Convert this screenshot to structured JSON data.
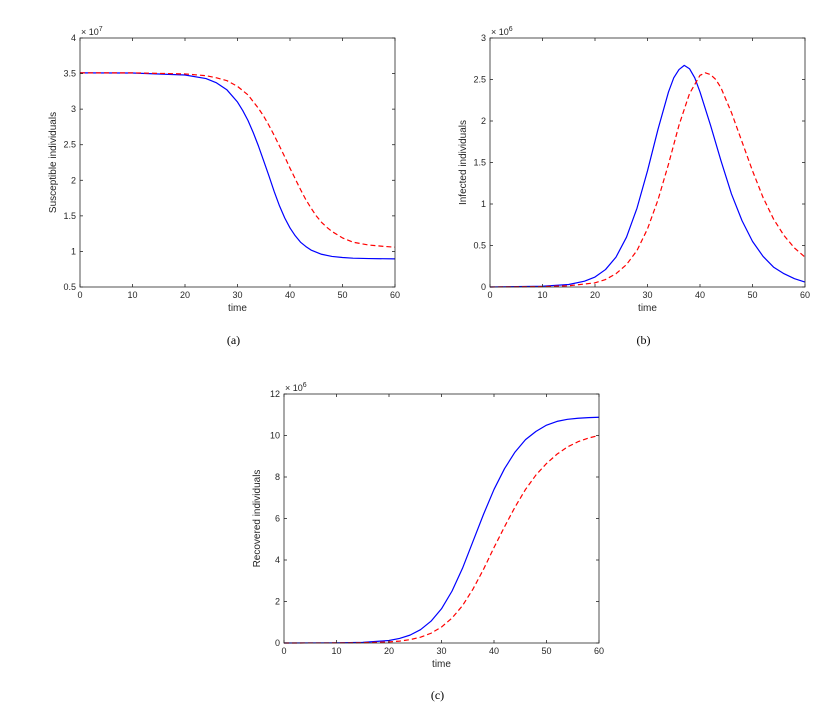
{
  "chart_data": [
    {
      "type": "line",
      "caption": "(a)",
      "xlabel": "time",
      "ylabel": "Susceptible individuals",
      "exponent": "7",
      "xlim": [
        0,
        60
      ],
      "ylim": [
        0.5,
        4
      ],
      "xticks": [
        0,
        10,
        20,
        30,
        40,
        50,
        60
      ],
      "yticks": [
        0.5,
        1,
        1.5,
        2,
        2.5,
        3,
        3.5,
        4
      ],
      "ytick_labels": [
        "0.5",
        "1",
        "1.5",
        "2",
        "2.5",
        "3",
        "3.5",
        "4"
      ],
      "series": [
        {
          "style": "solid",
          "color": "#0000ff",
          "x": [
            0,
            10,
            20,
            24,
            26,
            28,
            30,
            31,
            32,
            33,
            34,
            35,
            36,
            37,
            38,
            39,
            40,
            41,
            42,
            43,
            44,
            45,
            46,
            48,
            50,
            52,
            55,
            60
          ],
          "y": [
            3.51,
            3.508,
            3.48,
            3.43,
            3.37,
            3.27,
            3.1,
            2.98,
            2.84,
            2.67,
            2.48,
            2.27,
            2.06,
            1.84,
            1.64,
            1.47,
            1.33,
            1.22,
            1.13,
            1.07,
            1.02,
            0.99,
            0.96,
            0.93,
            0.915,
            0.905,
            0.9,
            0.895
          ]
        },
        {
          "style": "dashed",
          "color": "#ff0000",
          "x": [
            0,
            10,
            20,
            24,
            26,
            28,
            30,
            32,
            34,
            35,
            36,
            37,
            38,
            39,
            40,
            41,
            42,
            43,
            44,
            45,
            46,
            47,
            48,
            50,
            52,
            55,
            58,
            60
          ],
          "y": [
            3.51,
            3.51,
            3.495,
            3.47,
            3.44,
            3.4,
            3.32,
            3.2,
            3.01,
            2.9,
            2.77,
            2.63,
            2.48,
            2.33,
            2.17,
            2.02,
            1.87,
            1.73,
            1.61,
            1.5,
            1.41,
            1.34,
            1.28,
            1.19,
            1.13,
            1.09,
            1.07,
            1.06
          ]
        }
      ]
    },
    {
      "type": "line",
      "caption": "(b)",
      "xlabel": "time",
      "ylabel": "Infected individuals",
      "exponent": "6",
      "xlim": [
        0,
        60
      ],
      "ylim": [
        0,
        3
      ],
      "xticks": [
        0,
        10,
        20,
        30,
        40,
        50,
        60
      ],
      "yticks": [
        0,
        0.5,
        1,
        1.5,
        2,
        2.5,
        3
      ],
      "ytick_labels": [
        "0",
        "0.5",
        "1",
        "1.5",
        "2",
        "2.5",
        "3"
      ],
      "series": [
        {
          "style": "solid",
          "color": "#0000ff",
          "x": [
            0,
            10,
            15,
            18,
            20,
            22,
            24,
            26,
            28,
            30,
            32,
            34,
            35,
            36,
            37,
            38,
            39,
            40,
            42,
            44,
            46,
            48,
            50,
            52,
            54,
            56,
            58,
            60
          ],
          "y": [
            0.0,
            0.01,
            0.03,
            0.07,
            0.12,
            0.21,
            0.36,
            0.6,
            0.95,
            1.4,
            1.9,
            2.35,
            2.52,
            2.62,
            2.67,
            2.63,
            2.52,
            2.35,
            1.95,
            1.52,
            1.12,
            0.8,
            0.55,
            0.37,
            0.24,
            0.16,
            0.1,
            0.06
          ]
        },
        {
          "style": "dashed",
          "color": "#ff0000",
          "x": [
            0,
            10,
            15,
            20,
            22,
            24,
            26,
            28,
            30,
            32,
            34,
            36,
            38,
            40,
            41,
            42,
            43,
            44,
            46,
            48,
            50,
            52,
            54,
            56,
            58,
            60
          ],
          "y": [
            0.0,
            0.005,
            0.015,
            0.05,
            0.09,
            0.16,
            0.27,
            0.44,
            0.7,
            1.05,
            1.48,
            1.95,
            2.33,
            2.55,
            2.58,
            2.56,
            2.5,
            2.4,
            2.1,
            1.75,
            1.4,
            1.08,
            0.82,
            0.62,
            0.47,
            0.36
          ]
        }
      ]
    },
    {
      "type": "line",
      "caption": "(c)",
      "xlabel": "time",
      "ylabel": "Recovered individuals",
      "exponent": "6",
      "xlim": [
        0,
        60
      ],
      "ylim": [
        0,
        12
      ],
      "xticks": [
        0,
        10,
        20,
        30,
        40,
        50,
        60
      ],
      "yticks": [
        0,
        2,
        4,
        6,
        8,
        10,
        12
      ],
      "ytick_labels": [
        "0",
        "2",
        "4",
        "6",
        "8",
        "10",
        "12"
      ],
      "series": [
        {
          "style": "solid",
          "color": "#0000ff",
          "x": [
            0,
            10,
            15,
            20,
            22,
            24,
            26,
            28,
            30,
            32,
            34,
            36,
            38,
            40,
            42,
            44,
            46,
            48,
            50,
            52,
            54,
            56,
            58,
            60
          ],
          "y": [
            0.0,
            0.01,
            0.03,
            0.12,
            0.22,
            0.38,
            0.64,
            1.05,
            1.65,
            2.5,
            3.6,
            4.9,
            6.2,
            7.4,
            8.4,
            9.2,
            9.8,
            10.2,
            10.5,
            10.68,
            10.78,
            10.83,
            10.86,
            10.88
          ]
        },
        {
          "style": "dashed",
          "color": "#ff0000",
          "x": [
            0,
            10,
            15,
            20,
            22,
            24,
            26,
            28,
            30,
            32,
            34,
            36,
            38,
            40,
            42,
            44,
            46,
            48,
            50,
            52,
            54,
            56,
            58,
            60
          ],
          "y": [
            0.0,
            0.005,
            0.015,
            0.05,
            0.09,
            0.16,
            0.28,
            0.47,
            0.77,
            1.2,
            1.8,
            2.6,
            3.55,
            4.6,
            5.6,
            6.55,
            7.4,
            8.1,
            8.65,
            9.1,
            9.45,
            9.7,
            9.88,
            10.0
          ]
        }
      ]
    }
  ]
}
